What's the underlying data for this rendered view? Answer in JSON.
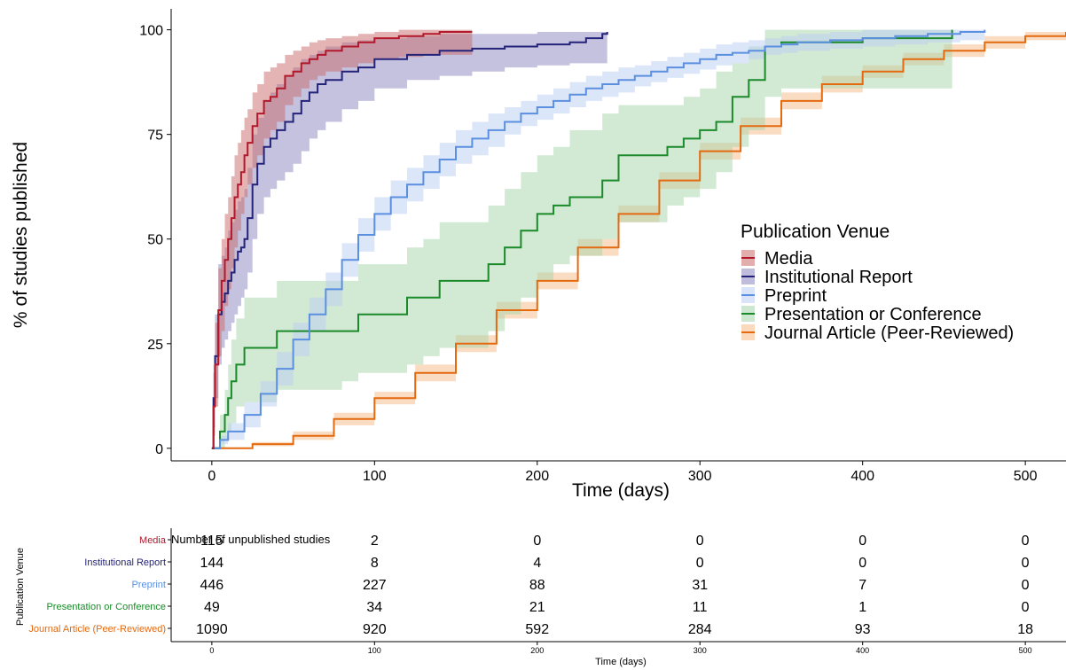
{
  "chart_data": [
    {
      "type": "line",
      "title": "",
      "xlabel": "Time (days)",
      "ylabel": "% of studies published",
      "xlim": [
        -25,
        525
      ],
      "ylim": [
        -3,
        105
      ],
      "xticks": [
        0,
        100,
        200,
        300,
        400,
        500
      ],
      "yticks": [
        0,
        25,
        50,
        75,
        100
      ],
      "grid": false,
      "legend": {
        "title": "Publication Venue",
        "placement": "center-right"
      },
      "series": [
        {
          "name": "Media",
          "color": "#b2182b",
          "band_color": "#c96a6a",
          "x": [
            0,
            1,
            2,
            4,
            6,
            8,
            10,
            12,
            14,
            16,
            18,
            20,
            22,
            25,
            28,
            32,
            36,
            40,
            45,
            50,
            55,
            60,
            65,
            70,
            80,
            90,
            100,
            115,
            130,
            140,
            160
          ],
          "y": [
            0,
            10,
            20,
            33,
            40,
            45,
            50,
            55,
            60,
            63,
            66,
            70,
            73,
            77,
            80,
            83,
            84,
            86,
            89,
            90,
            92,
            93,
            94,
            95,
            96,
            97,
            98,
            98.5,
            99,
            99.5,
            99.5
          ],
          "lower": [
            0,
            3,
            10,
            22,
            28,
            34,
            38,
            43,
            48,
            52,
            56,
            60,
            63,
            67,
            70,
            74,
            76,
            78,
            82,
            84,
            86,
            88,
            89,
            90,
            91,
            92,
            93,
            93.5,
            94,
            94,
            94
          ],
          "upper": [
            0,
            18,
            30,
            43,
            50,
            56,
            60,
            65,
            70,
            73,
            76,
            79,
            81,
            85,
            87,
            90,
            91,
            92,
            94,
            95,
            96,
            97,
            97.5,
            98,
            98.5,
            99,
            99.5,
            100,
            100,
            100,
            100
          ]
        },
        {
          "name": "Institutional Report",
          "color": "#23237a",
          "band_color": "#8a86bd",
          "x": [
            0,
            1,
            2,
            4,
            6,
            8,
            10,
            12,
            14,
            16,
            18,
            20,
            22,
            25,
            28,
            32,
            36,
            40,
            45,
            50,
            55,
            60,
            65,
            70,
            80,
            90,
            100,
            120,
            140,
            160,
            180,
            200,
            220,
            230,
            240,
            243
          ],
          "y": [
            0,
            12,
            22,
            32,
            35,
            37,
            40,
            42,
            45,
            47,
            48,
            50,
            55,
            63,
            68,
            72,
            74,
            76,
            78,
            80,
            83,
            85,
            87,
            88,
            90,
            91,
            93,
            94,
            95,
            95.5,
            96,
            96.5,
            97,
            98,
            99,
            99.5
          ],
          "lower": [
            0,
            5,
            12,
            20,
            24,
            26,
            28,
            30,
            32,
            34,
            36,
            38,
            42,
            50,
            56,
            60,
            62,
            64,
            66,
            68,
            71,
            74,
            76,
            78,
            81,
            83,
            86,
            88,
            89,
            90,
            91,
            91.5,
            92,
            92,
            92,
            92
          ],
          "upper": [
            0,
            20,
            32,
            44,
            46,
            48,
            52,
            54,
            57,
            59,
            60,
            62,
            67,
            75,
            79,
            83,
            85,
            87,
            89,
            91,
            93,
            94,
            95,
            96,
            97,
            97.5,
            98,
            98.5,
            99,
            99,
            99,
            99.5,
            99.5,
            99.5,
            99.5,
            99.5
          ]
        },
        {
          "name": "Preprint",
          "color": "#5b8fe0",
          "band_color": "#b9cdf3",
          "x": [
            0,
            5,
            10,
            20,
            30,
            40,
            50,
            60,
            70,
            80,
            90,
            100,
            110,
            120,
            130,
            140,
            150,
            160,
            170,
            180,
            190,
            200,
            210,
            220,
            230,
            240,
            250,
            260,
            270,
            280,
            290,
            300,
            310,
            320,
            330,
            340,
            350,
            360,
            380,
            400,
            420,
            440,
            460,
            475
          ],
          "y": [
            0,
            2,
            4,
            8,
            13,
            19,
            26,
            32,
            38,
            45,
            51,
            56,
            60,
            63,
            66,
            69,
            72,
            74,
            76,
            78,
            80,
            81.5,
            83,
            84.5,
            86,
            87,
            88,
            89,
            90,
            91,
            92,
            93,
            94,
            94.5,
            95,
            96,
            96.5,
            97,
            97.5,
            98,
            98.5,
            99,
            99.5,
            100
          ],
          "lower": [
            0,
            1,
            2,
            5,
            10,
            15,
            22,
            28,
            34,
            41,
            47,
            52,
            56,
            59,
            62,
            65,
            68,
            70,
            72,
            75,
            77,
            78.5,
            80,
            81.5,
            83,
            84,
            85,
            86.5,
            87.5,
            88.5,
            89.5,
            90.5,
            91.5,
            92,
            93,
            94,
            94.5,
            95,
            95.5,
            96,
            96.5,
            97,
            97.5,
            98
          ],
          "upper": [
            0,
            3,
            6,
            11,
            16,
            23,
            30,
            36,
            42,
            49,
            55,
            60,
            64,
            67,
            70,
            73,
            76,
            78,
            80,
            81.5,
            83,
            84.5,
            86,
            87.5,
            89,
            90,
            91,
            91.5,
            92.5,
            93.5,
            94.5,
            95.5,
            96.5,
            97,
            97.5,
            98,
            98.5,
            99,
            99.5,
            100,
            100,
            100,
            100,
            100
          ]
        },
        {
          "name": "Presentation or Conference",
          "color": "#1a8a2a",
          "band_color": "#a6d4a9",
          "x": [
            0,
            5,
            8,
            10,
            12,
            15,
            20,
            25,
            30,
            35,
            40,
            50,
            60,
            70,
            80,
            90,
            100,
            110,
            120,
            130,
            140,
            150,
            160,
            170,
            180,
            190,
            200,
            210,
            220,
            230,
            240,
            250,
            260,
            270,
            280,
            290,
            300,
            310,
            320,
            330,
            340,
            350,
            400,
            455
          ],
          "y": [
            0,
            4,
            8,
            12,
            16,
            20,
            24,
            24,
            24,
            24,
            28,
            28,
            28,
            28,
            28,
            32,
            32,
            32,
            36,
            36,
            40,
            40,
            40,
            44,
            48,
            52,
            56,
            58,
            60,
            60,
            64,
            70,
            70,
            70,
            72,
            74,
            76,
            78,
            84,
            88,
            96,
            97,
            98,
            100
          ],
          "lower": [
            0,
            0,
            2,
            4,
            6,
            10,
            11,
            11,
            11,
            11,
            14,
            14,
            14,
            14,
            16,
            18,
            18,
            18,
            20,
            22,
            24,
            24,
            24,
            28,
            32,
            36,
            40,
            44,
            46,
            46,
            50,
            54,
            54,
            54,
            58,
            60,
            62,
            66,
            72,
            76,
            84,
            86,
            86,
            86
          ],
          "upper": [
            0,
            8,
            14,
            20,
            26,
            31,
            36,
            36,
            36,
            36,
            40,
            40,
            40,
            40,
            40,
            44,
            44,
            44,
            48,
            50,
            54,
            54,
            54,
            58,
            62,
            66,
            70,
            72,
            76,
            76,
            80,
            82,
            82,
            82,
            82,
            84,
            86,
            90,
            92,
            96,
            100,
            100,
            100,
            100
          ]
        },
        {
          "name": "Journal Article (Peer-Reviewed)",
          "color": "#e46a10",
          "band_color": "#f6b987",
          "x": [
            0,
            25,
            50,
            75,
            100,
            125,
            150,
            175,
            200,
            225,
            250,
            275,
            300,
            325,
            350,
            375,
            400,
            425,
            450,
            475,
            500,
            525
          ],
          "y": [
            0,
            1,
            3,
            7,
            12,
            18,
            25,
            33,
            40,
            48,
            56,
            64,
            71,
            77,
            83,
            87,
            90,
            93,
            95,
            97,
            98.5,
            99.5
          ],
          "lower": [
            0,
            0.5,
            2,
            5.5,
            10.5,
            16,
            23,
            31,
            38,
            46,
            54,
            62,
            69,
            75,
            81,
            85,
            88.5,
            91.5,
            93.5,
            95.5,
            97.5,
            98.5
          ],
          "upper": [
            0,
            1.5,
            4,
            8.5,
            13.5,
            20,
            27,
            35,
            42,
            50,
            58,
            66,
            73,
            79,
            85,
            89,
            91.5,
            94.5,
            96.5,
            98.5,
            99.5,
            100
          ]
        }
      ]
    },
    {
      "type": "table",
      "title": "Number of unpublished studies",
      "xlabel": "Time (days)",
      "ylabel": "Publication Venue",
      "xticks": [
        0,
        100,
        200,
        300,
        400,
        500
      ],
      "rows": [
        {
          "name": "Media",
          "color": "#b2182b",
          "values": [
            115,
            2,
            0,
            0,
            0,
            0
          ]
        },
        {
          "name": "Institutional Report",
          "color": "#23237a",
          "values": [
            144,
            8,
            4,
            0,
            0,
            0
          ]
        },
        {
          "name": "Preprint",
          "color": "#5b8fe0",
          "values": [
            446,
            227,
            88,
            31,
            7,
            0
          ]
        },
        {
          "name": "Presentation or Conference",
          "color": "#1a8a2a",
          "values": [
            49,
            34,
            21,
            11,
            1,
            0
          ]
        },
        {
          "name": "Journal Article (Peer-Reviewed)",
          "color": "#e46a10",
          "values": [
            1090,
            920,
            592,
            284,
            93,
            18
          ]
        }
      ]
    }
  ]
}
